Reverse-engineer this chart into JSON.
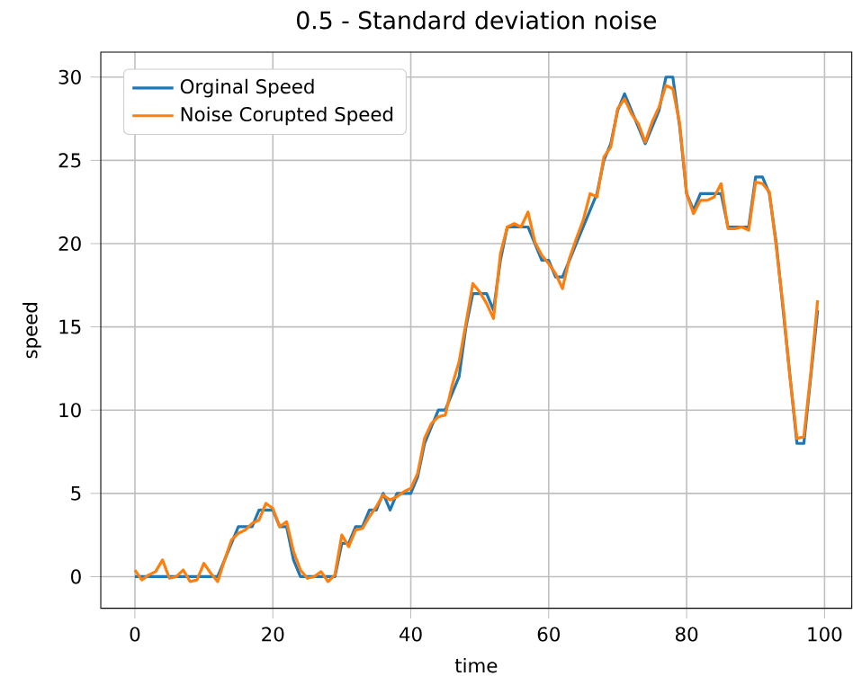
{
  "chart_data": {
    "type": "line",
    "title": "0.5 - Standard deviation noise",
    "xlabel": "time",
    "ylabel": "speed",
    "x": [
      0,
      1,
      2,
      3,
      4,
      5,
      6,
      7,
      8,
      9,
      10,
      11,
      12,
      13,
      14,
      15,
      16,
      17,
      18,
      19,
      20,
      21,
      22,
      23,
      24,
      25,
      26,
      27,
      28,
      29,
      30,
      31,
      32,
      33,
      34,
      35,
      36,
      37,
      38,
      39,
      40,
      41,
      42,
      43,
      44,
      45,
      46,
      47,
      48,
      49,
      50,
      51,
      52,
      53,
      54,
      55,
      56,
      57,
      58,
      59,
      60,
      61,
      62,
      63,
      64,
      65,
      66,
      67,
      68,
      69,
      70,
      71,
      72,
      73,
      74,
      75,
      76,
      77,
      78,
      79,
      80,
      81,
      82,
      83,
      84,
      85,
      86,
      87,
      88,
      89,
      90,
      91,
      92,
      93,
      94,
      95,
      96,
      97,
      98,
      99
    ],
    "series": [
      {
        "name": "Orginal Speed",
        "color": "#1f77b4",
        "values": [
          0,
          0,
          0,
          0,
          0,
          0,
          0,
          0,
          0,
          0,
          0,
          0,
          0,
          1,
          2,
          3,
          3,
          3,
          4,
          4,
          4,
          3,
          3,
          1,
          0,
          0,
          0,
          0,
          0,
          0,
          2,
          2,
          3,
          3,
          4,
          4,
          5,
          4,
          5,
          5,
          5,
          6,
          8,
          9,
          10,
          10,
          11,
          12,
          15,
          17,
          17,
          17,
          16,
          19,
          21,
          21,
          21,
          21,
          20,
          19,
          19,
          18,
          18,
          19,
          20,
          21,
          22,
          23,
          25,
          26,
          28,
          29,
          28,
          27,
          26,
          27,
          28,
          30,
          30,
          27,
          23,
          22,
          23,
          23,
          23,
          23,
          21,
          21,
          21,
          21,
          24,
          24,
          23,
          20,
          16,
          12,
          8,
          8,
          12,
          16
        ]
      },
      {
        "name": "Noise Corupted Speed",
        "color": "#ff7f0e",
        "values": [
          0.4,
          -0.2,
          0.1,
          0.3,
          1.0,
          -0.1,
          0,
          0.4,
          -0.3,
          -0.2,
          0.8,
          0.2,
          -0.3,
          1.0,
          2.2,
          2.6,
          2.8,
          3.2,
          3.4,
          4.4,
          4.1,
          3.0,
          3.3,
          1.5,
          0.4,
          -0.1,
          0,
          0.3,
          -0.3,
          0.1,
          2.5,
          1.8,
          2.8,
          2.9,
          3.6,
          4.2,
          4.9,
          4.6,
          4.8,
          5.1,
          5.3,
          6.2,
          8.3,
          9.2,
          9.6,
          9.7,
          11.5,
          12.9,
          15.2,
          17.6,
          17.1,
          16.4,
          15.5,
          19.4,
          21.0,
          21.2,
          21.0,
          21.9,
          20.1,
          19.3,
          18.8,
          18.2,
          17.3,
          19.1,
          20.3,
          21.4,
          23.0,
          22.8,
          25.2,
          25.8,
          28.1,
          28.7,
          27.8,
          27.2,
          26.1,
          27.3,
          28.2,
          29.5,
          29.3,
          27.2,
          23.0,
          21.8,
          22.6,
          22.6,
          22.8,
          23.6,
          20.9,
          20.9,
          21.0,
          20.8,
          23.7,
          23.6,
          23.1,
          19.8,
          16.2,
          11.9,
          8.3,
          8.4,
          12.2,
          16.6
        ]
      }
    ],
    "xlim": [
      -4.95,
      103.95
    ],
    "ylim": [
      -1.9,
      31.5
    ],
    "xticks": [
      0,
      20,
      40,
      60,
      80,
      100
    ],
    "yticks": [
      0,
      5,
      10,
      15,
      20,
      25,
      30
    ],
    "grid": true,
    "legend": "top left",
    "marker": "none",
    "line_style": "solid"
  }
}
